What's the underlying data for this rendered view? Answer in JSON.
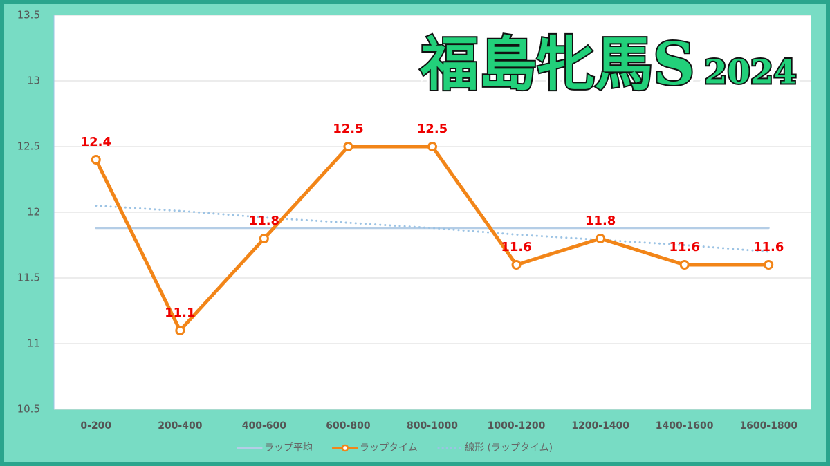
{
  "chart_data": {
    "type": "line",
    "title": "福島牝馬S",
    "subtitle": "2024",
    "categories": [
      "0-200",
      "200-400",
      "400-600",
      "600-800",
      "800-1000",
      "1000-1200",
      "1200-1400",
      "1400-1600",
      "1600-1800"
    ],
    "series": [
      {
        "name": "ラップ平均",
        "color": "#b4cde6",
        "style": "solid",
        "markers": false,
        "labels": false,
        "values": [
          11.88,
          11.88,
          11.88,
          11.88,
          11.88,
          11.88,
          11.88,
          11.88,
          11.88
        ]
      },
      {
        "name": "ラップタイム",
        "color": "#f28518",
        "style": "solid",
        "markers": true,
        "labels": true,
        "values": [
          12.4,
          11.1,
          11.8,
          12.5,
          12.5,
          11.6,
          11.8,
          11.6,
          11.6
        ]
      },
      {
        "name": "線形 (ラップタイム)",
        "color": "#9cc3e4",
        "style": "dotted",
        "markers": false,
        "labels": false,
        "values": [
          12.05,
          12.01,
          11.96,
          11.92,
          11.88,
          11.83,
          11.79,
          11.75,
          11.7
        ]
      }
    ],
    "ylim": [
      10.5,
      13.5
    ],
    "yticks": [
      10.5,
      11,
      11.5,
      12,
      12.5,
      13,
      13.5
    ],
    "grid": true,
    "legend": "bottom"
  }
}
